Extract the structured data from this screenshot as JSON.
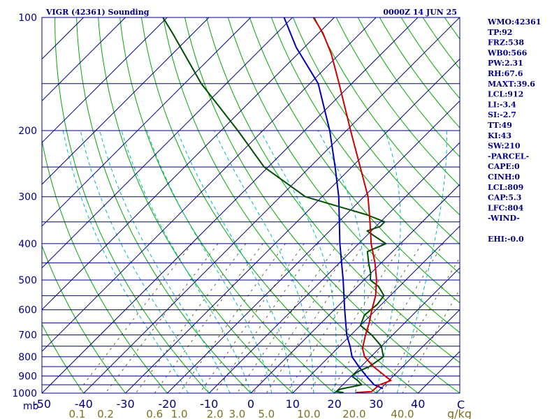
{
  "header": {
    "title": "VIGR (42361) Sounding",
    "datetime": "0000Z 14 JUN 25"
  },
  "indices": [
    "WMO:42361",
    "TP:92",
    "FRZ:538",
    "WB0:566",
    "PW:2.31",
    "RH:67.6",
    "MAXT:39.6",
    "LCL:912",
    "LI:-3.4",
    "SI:-2.7",
    "TT:49",
    "KI:43",
    "SW:210",
    "-PARCEL-",
    "CAPE:0",
    "CINH:0",
    "LCL:809",
    "CAP:5.3",
    "LFC:804",
    "-WIND-",
    "",
    "EHI:-0.0"
  ],
  "chart_data": {
    "type": "line",
    "title": "VIGR (42361) Sounding",
    "subtitle": "0000Z 14 JUN 25",
    "y_axis": {
      "unit_label": "mb",
      "scale": "log",
      "ylim": [
        1000,
        100
      ],
      "tick_labels": [
        "100",
        "200",
        "300",
        "400",
        "500",
        "600",
        "700",
        "800",
        "900",
        "1000"
      ]
    },
    "x_axis": {
      "unit_label": "C",
      "xlim": [
        -50,
        50
      ],
      "tick_labels": [
        "-50",
        "-40",
        "-30",
        "-20",
        "-10",
        "0",
        "10",
        "20",
        "30",
        "40"
      ]
    },
    "mixing_ratio_axis": {
      "unit_label": "g/kg",
      "tick_labels": [
        "0.1",
        "0.2",
        "0.6",
        "1.0",
        "2.0",
        "3.0",
        "5.0",
        "10.0",
        "20.0",
        "40.0"
      ]
    },
    "isobars_mb": [
      100,
      150,
      200,
      250,
      300,
      350,
      400,
      450,
      500,
      550,
      600,
      650,
      700,
      750,
      800,
      850,
      900,
      950,
      1000
    ],
    "skew_deg": 45,
    "grid": true,
    "colors": {
      "temperature": "#cc0000",
      "dewpoint": "#004d00",
      "parcel": "#0000b0",
      "isobar": "#000080",
      "isotherm": "#000080",
      "dry_adiabat": "#00aa00",
      "moist_adiabat": "#00bbbb",
      "mixing_ratio": "#6b5b2f",
      "axis_text": "#000080",
      "mixing_text": "#807020"
    },
    "series": [
      {
        "key": "temperature",
        "points": [
          [
            996,
            25.0
          ],
          [
            990,
            28.5
          ],
          [
            950,
            28.8
          ],
          [
            925,
            30.5
          ],
          [
            900,
            28.0
          ],
          [
            850,
            23.0
          ],
          [
            800,
            18.5
          ],
          [
            760,
            16.0
          ],
          [
            700,
            13.5
          ],
          [
            650,
            11.5
          ],
          [
            600,
            9.0
          ],
          [
            550,
            6.5
          ],
          [
            500,
            3.0
          ],
          [
            450,
            -1.5
          ],
          [
            400,
            -7.0
          ],
          [
            350,
            -12.5
          ],
          [
            300,
            -19.0
          ],
          [
            250,
            -28.0
          ],
          [
            200,
            -39.0
          ],
          [
            150,
            -53.0
          ],
          [
            125,
            -62.0
          ],
          [
            110,
            -69.0
          ],
          [
            100,
            -75.0
          ]
        ]
      },
      {
        "key": "dewpoint",
        "points": [
          [
            996,
            22.0
          ],
          [
            990,
            20.0
          ],
          [
            975,
            20.5
          ],
          [
            950,
            24.5
          ],
          [
            925,
            22.5
          ],
          [
            900,
            20.0
          ],
          [
            875,
            20.5
          ],
          [
            850,
            22.0
          ],
          [
            800,
            23.0
          ],
          [
            750,
            20.0
          ],
          [
            700,
            15.0
          ],
          [
            660,
            10.0
          ],
          [
            620,
            8.5
          ],
          [
            580,
            9.0
          ],
          [
            550,
            8.5
          ],
          [
            520,
            5.0
          ],
          [
            500,
            1.5
          ],
          [
            480,
            0.0
          ],
          [
            450,
            -3.0
          ],
          [
            420,
            -6.0
          ],
          [
            400,
            -3.5
          ],
          [
            380,
            -8.5
          ],
          [
            370,
            -11.0
          ],
          [
            360,
            -9.0
          ],
          [
            350,
            -9.0
          ],
          [
            335,
            -15.0
          ],
          [
            300,
            -34.0
          ],
          [
            250,
            -51.0
          ],
          [
            200,
            -66.0
          ],
          [
            150,
            -86.0
          ],
          [
            110,
            -105.0
          ],
          [
            100,
            -111.0
          ]
        ]
      },
      {
        "key": "parcel",
        "points": [
          [
            972,
            30.5
          ],
          [
            950,
            27.5
          ],
          [
            900,
            23.5
          ],
          [
            850,
            19.5
          ],
          [
            800,
            15.5
          ],
          [
            750,
            12.5
          ],
          [
            700,
            9.0
          ],
          [
            600,
            2.5
          ],
          [
            500,
            -5.0
          ],
          [
            400,
            -14.5
          ],
          [
            300,
            -26.0
          ],
          [
            250,
            -34.0
          ],
          [
            200,
            -44.0
          ],
          [
            150,
            -58.0
          ],
          [
            120,
            -72.0
          ],
          [
            100,
            -82.0
          ]
        ]
      }
    ]
  }
}
